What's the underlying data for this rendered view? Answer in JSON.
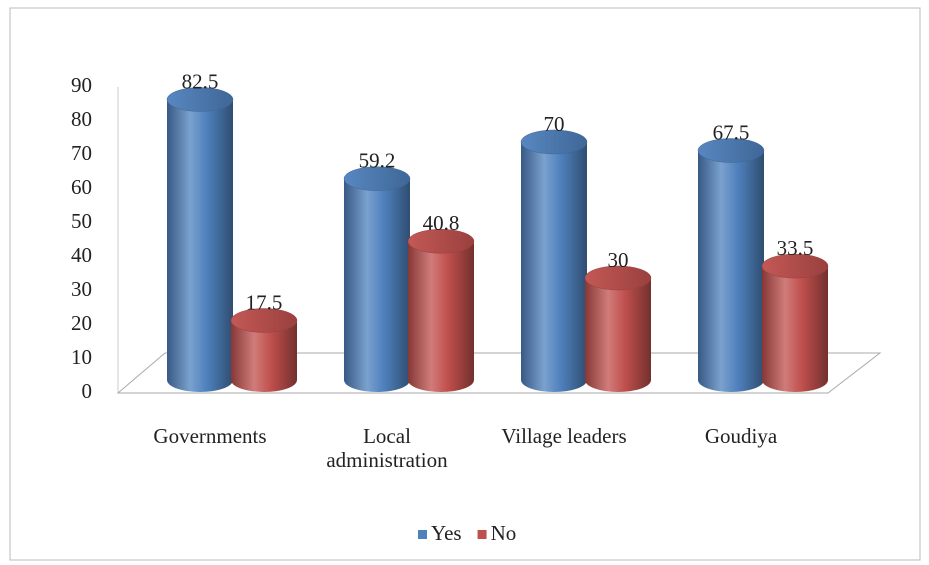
{
  "chart_data": {
    "type": "bar",
    "categories": [
      "Governments",
      "Local administration",
      "Village leaders",
      "Goudiya"
    ],
    "series": [
      {
        "name": "Yes",
        "color": "#4f81bd",
        "values": [
          82.5,
          59.2,
          70,
          67.5
        ]
      },
      {
        "name": "No",
        "color": "#c0504d",
        "values": [
          17.5,
          40.8,
          30,
          33.5
        ]
      }
    ],
    "ylim": [
      0,
      90
    ],
    "yticks": [
      0,
      10,
      20,
      30,
      40,
      50,
      60,
      70,
      80,
      90
    ],
    "grid": false,
    "legend": "bottom"
  }
}
